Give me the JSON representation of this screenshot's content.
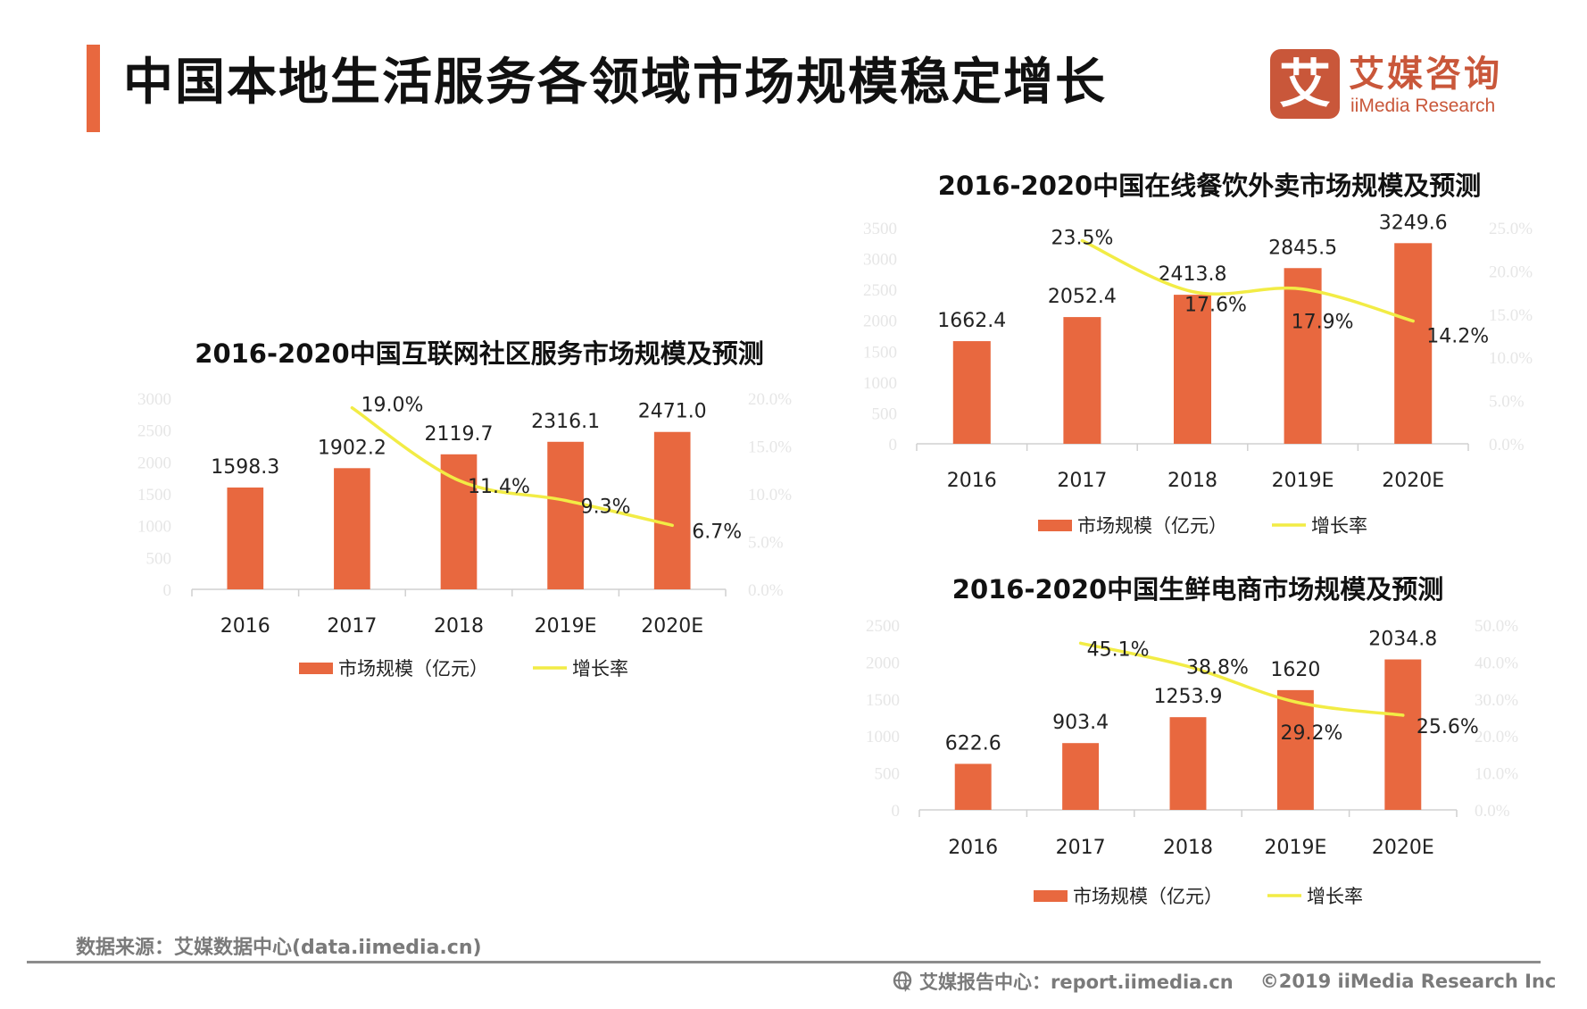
{
  "header": {
    "title": "中国本地生活服务各领域市场规模稳定增长",
    "accent_color": "#E8683F"
  },
  "logo": {
    "icon_glyph": "艾",
    "name_cn": "艾媒咨询",
    "name_en": "iiMedia Research",
    "color": "#C9573A"
  },
  "colors": {
    "bar": "#E8683F",
    "line": "#F2EC45",
    "axis": "#d0d0d0",
    "tick_label": "#e6e6e6",
    "label": "#222222"
  },
  "chart_data": [
    {
      "id": "community",
      "type": "bar",
      "title": "2016-2020中国互联网社区服务市场规模及预测",
      "categories": [
        "2016",
        "2017",
        "2018",
        "2019E",
        "2020E"
      ],
      "series": [
        {
          "name": "市场规模（亿元）",
          "type": "bar",
          "axis": "left",
          "values": [
            1598.3,
            1902.2,
            2119.7,
            2316.1,
            2471.0
          ],
          "labels": [
            "1598.3",
            "1902.2",
            "2119.7",
            "2316.1",
            "2471.0"
          ]
        },
        {
          "name": "增长率",
          "type": "line",
          "axis": "right",
          "values": [
            null,
            19.0,
            11.4,
            9.3,
            6.7
          ],
          "labels": [
            "",
            "19.0%",
            "11.4%",
            "9.3%",
            "6.7%"
          ]
        }
      ],
      "ylim_left": [
        0,
        3000
      ],
      "yticks_left": [
        "0",
        "500",
        "1000",
        "1500",
        "2000",
        "2500",
        "3000"
      ],
      "ylim_right": [
        0,
        20
      ],
      "yticks_right": [
        "0.0%",
        "5.0%",
        "10.0%",
        "15.0%",
        "20.0%"
      ],
      "xlabel": "",
      "ylabel": "",
      "grid": false,
      "legend": "bottom"
    },
    {
      "id": "food-delivery",
      "type": "bar",
      "title": "2016-2020中国在线餐饮外卖市场规模及预测",
      "categories": [
        "2016",
        "2017",
        "2018",
        "2019E",
        "2020E"
      ],
      "series": [
        {
          "name": "市场规模（亿元）",
          "type": "bar",
          "axis": "left",
          "values": [
            1662.4,
            2052.4,
            2413.8,
            2845.5,
            3249.6
          ],
          "labels": [
            "1662.4",
            "2052.4",
            "2413.8",
            "2845.5",
            "3249.6"
          ]
        },
        {
          "name": "增长率",
          "type": "line",
          "axis": "right",
          "values": [
            null,
            23.5,
            17.6,
            17.9,
            14.2
          ],
          "labels": [
            "",
            "23.5%",
            "17.6%",
            "17.9%",
            "14.2%"
          ]
        }
      ],
      "ylim_left": [
        0,
        3500
      ],
      "yticks_left": [
        "0",
        "500",
        "1000",
        "1500",
        "2000",
        "2500",
        "3000",
        "3500"
      ],
      "ylim_right": [
        0,
        25
      ],
      "yticks_right": [
        "0.0%",
        "5.0%",
        "10.0%",
        "15.0%",
        "20.0%",
        "25.0%"
      ],
      "xlabel": "",
      "ylabel": "",
      "grid": false,
      "legend": "bottom"
    },
    {
      "id": "fresh-ecommerce",
      "type": "bar",
      "title": "2016-2020中国生鲜电商市场规模及预测",
      "categories": [
        "2016",
        "2017",
        "2018",
        "2019E",
        "2020E"
      ],
      "series": [
        {
          "name": "市场规模（亿元）",
          "type": "bar",
          "axis": "left",
          "values": [
            622.6,
            903.4,
            1253.9,
            1620,
            2034.8
          ],
          "labels": [
            "622.6",
            "903.4",
            "1253.9",
            "1620",
            "2034.8"
          ]
        },
        {
          "name": "增长率",
          "type": "line",
          "axis": "right",
          "values": [
            null,
            45.1,
            38.8,
            29.2,
            25.6
          ],
          "labels": [
            "",
            "45.1%",
            "38.8%",
            "29.2%",
            "25.6%"
          ]
        }
      ],
      "ylim_left": [
        0,
        2500
      ],
      "yticks_left": [
        "0",
        "500",
        "1000",
        "1500",
        "2000",
        "2500"
      ],
      "ylim_right": [
        0,
        50
      ],
      "yticks_right": [
        "0.0%",
        "10.0%",
        "20.0%",
        "30.0%",
        "40.0%",
        "50.0%"
      ],
      "xlabel": "",
      "ylabel": "",
      "grid": false,
      "legend": "bottom"
    }
  ],
  "footer": {
    "source": "数据来源：艾媒数据中心(data.iimedia.cn)",
    "report_center": "艾媒报告中心：report.iimedia.cn",
    "copyright": "©2019  iiMedia Research  Inc"
  }
}
